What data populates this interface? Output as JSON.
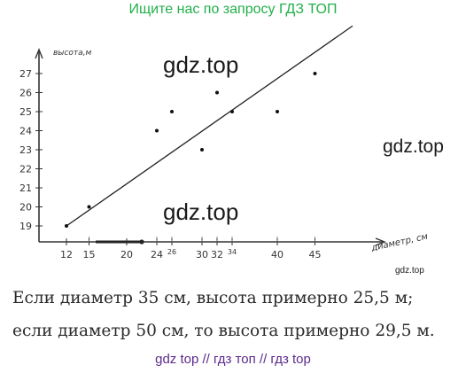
{
  "banner": "Ищите нас по запросу ГДЗ ТОП",
  "watermarks": [
    "gdz.top",
    "gdz.top",
    "gdz.top",
    "gdz.top"
  ],
  "caption_lines": [
    "Если диаметр 35 см, высота примерно 25,5 м;",
    "если диаметр 50 см, то высота примерно 29,5 м."
  ],
  "footer": "gdz top  //  гдз топ  //  гдз top",
  "chart_data": {
    "type": "scatter",
    "xlabel": "диаметр, см",
    "ylabel": "высота,м",
    "x_ticks": [
      "12",
      "15",
      "20",
      "24",
      "26",
      "30",
      "32",
      "34",
      "40",
      "45"
    ],
    "x_tick_values": [
      12,
      15,
      20,
      24,
      26,
      30,
      32,
      34,
      40,
      45
    ],
    "y_ticks": [
      "19",
      "20",
      "21",
      "22",
      "23",
      "24",
      "25",
      "26",
      "27"
    ],
    "y_tick_values": [
      19,
      20,
      21,
      22,
      23,
      24,
      25,
      26,
      27
    ],
    "points": [
      {
        "x": 12,
        "y": 19
      },
      {
        "x": 15,
        "y": 20
      },
      {
        "x": 24,
        "y": 24
      },
      {
        "x": 26,
        "y": 25
      },
      {
        "x": 30,
        "y": 23
      },
      {
        "x": 32,
        "y": 26
      },
      {
        "x": 34,
        "y": 25
      },
      {
        "x": 40,
        "y": 25
      },
      {
        "x": 45,
        "y": 27
      }
    ],
    "trend_line": {
      "x": [
        12,
        50
      ],
      "y": [
        19,
        29.5
      ]
    },
    "grid": false
  }
}
